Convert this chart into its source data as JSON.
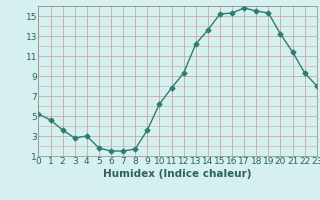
{
  "x": [
    0,
    1,
    2,
    3,
    4,
    5,
    6,
    7,
    8,
    9,
    10,
    11,
    12,
    13,
    14,
    15,
    16,
    17,
    18,
    19,
    20,
    21,
    22,
    23
  ],
  "y": [
    5.2,
    4.6,
    3.6,
    2.8,
    3.0,
    1.8,
    1.5,
    1.5,
    1.7,
    3.6,
    6.2,
    7.8,
    9.3,
    12.2,
    13.6,
    15.2,
    15.3,
    15.8,
    15.5,
    15.3,
    13.2,
    11.4,
    9.3,
    8.0
  ],
  "line_color": "#2e7d6e",
  "marker": "D",
  "marker_size": 2.5,
  "bg_color": "#d6f0f0",
  "grid_color": "#c8a8a8",
  "xlabel": "Humidex (Indice chaleur)",
  "xlim": [
    0,
    23
  ],
  "ylim": [
    1,
    16
  ],
  "yticks": [
    1,
    3,
    5,
    7,
    9,
    11,
    13,
    15
  ],
  "xticks": [
    0,
    1,
    2,
    3,
    4,
    5,
    6,
    7,
    8,
    9,
    10,
    11,
    12,
    13,
    14,
    15,
    16,
    17,
    18,
    19,
    20,
    21,
    22,
    23
  ],
  "xlabel_fontsize": 7.5,
  "tick_fontsize": 6.5
}
